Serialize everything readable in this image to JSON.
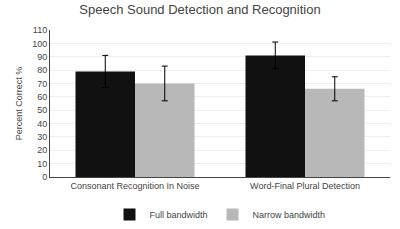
{
  "chart_data": {
    "type": "bar",
    "title": "Speech Sound Detection and Recognition",
    "ylabel": "Percent Correct %",
    "categories": [
      "Consonant Recognition In Noise",
      "Word-Final Plural Detection"
    ],
    "series": [
      {
        "name": "Full bandwidth",
        "values": [
          79,
          91
        ],
        "errors": [
          12,
          10
        ],
        "color": "#111111"
      },
      {
        "name": "Narrow bandwidth",
        "values": [
          70,
          66
        ],
        "errors": [
          13,
          9
        ],
        "color": "#b8b8b8"
      }
    ],
    "ylim": [
      0,
      110
    ],
    "yticks": [
      0,
      10,
      20,
      30,
      40,
      50,
      60,
      70,
      80,
      90,
      100,
      110
    ],
    "grid": true,
    "legend": "bottom"
  }
}
